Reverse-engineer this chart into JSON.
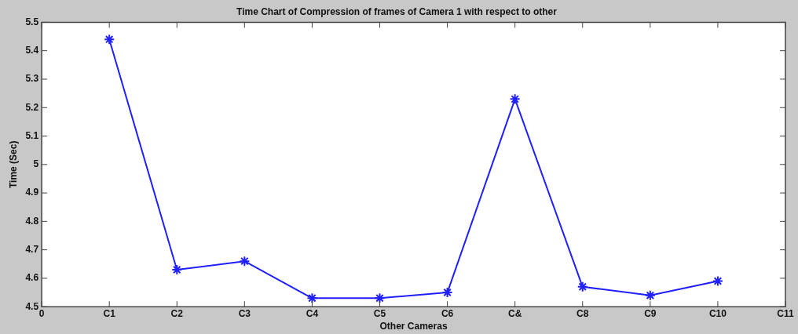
{
  "chart_data": {
    "type": "line",
    "title": "Time Chart of Compression of frames of Camera 1 with respect to other",
    "xlabel": "Other Cameras",
    "ylabel": "Time (Sec)",
    "categories": [
      "0",
      "C1",
      "C2",
      "C3",
      "C4",
      "C5",
      "C6",
      "C&",
      "C8",
      "C9",
      "C10",
      "C11"
    ],
    "series": [
      {
        "color": "#1f1fff",
        "values": [
          null,
          5.44,
          4.63,
          4.66,
          4.53,
          4.53,
          4.55,
          5.23,
          4.57,
          4.54,
          4.59,
          null
        ]
      }
    ],
    "ylim": [
      4.5,
      5.5
    ],
    "yticks": [
      4.5,
      4.6,
      4.7,
      4.8,
      4.9,
      5,
      5.1,
      5.2,
      5.3,
      5.4,
      5.5
    ],
    "grid": false,
    "legend": false,
    "marker": "cross",
    "line_style": "solid"
  }
}
